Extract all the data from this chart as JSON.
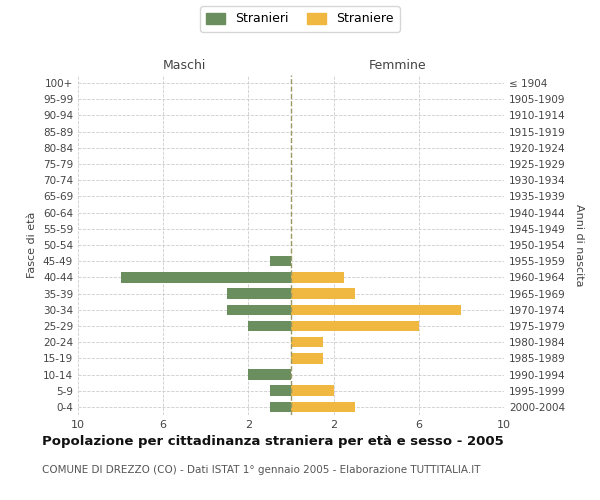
{
  "age_groups": [
    "100+",
    "95-99",
    "90-94",
    "85-89",
    "80-84",
    "75-79",
    "70-74",
    "65-69",
    "60-64",
    "55-59",
    "50-54",
    "45-49",
    "40-44",
    "35-39",
    "30-34",
    "25-29",
    "20-24",
    "15-19",
    "10-14",
    "5-9",
    "0-4"
  ],
  "birth_years": [
    "≤ 1904",
    "1905-1909",
    "1910-1914",
    "1915-1919",
    "1920-1924",
    "1925-1929",
    "1930-1934",
    "1935-1939",
    "1940-1944",
    "1945-1949",
    "1950-1954",
    "1955-1959",
    "1960-1964",
    "1965-1969",
    "1970-1974",
    "1975-1979",
    "1980-1984",
    "1985-1989",
    "1990-1994",
    "1995-1999",
    "2000-2004"
  ],
  "maschi": [
    0,
    0,
    0,
    0,
    0,
    0,
    0,
    0,
    0,
    0,
    0,
    1,
    8,
    3,
    3,
    2,
    0,
    0,
    2,
    1,
    1
  ],
  "femmine": [
    0,
    0,
    0,
    0,
    0,
    0,
    0,
    0,
    0,
    0,
    0,
    0,
    2.5,
    3,
    8,
    6,
    1.5,
    1.5,
    0,
    2,
    3
  ],
  "male_color": "#6b8e5e",
  "female_color": "#f0b840",
  "background_color": "#ffffff",
  "grid_color": "#cccccc",
  "center_line_color": "#999966",
  "title": "Popolazione per cittadinanza straniera per età e sesso - 2005",
  "subtitle": "COMUNE DI DREZZO (CO) - Dati ISTAT 1° gennaio 2005 - Elaborazione TUTTITALIA.IT",
  "xlabel_left": "Maschi",
  "xlabel_right": "Femmine",
  "ylabel_left": "Fasce di età",
  "ylabel_right": "Anni di nascita",
  "legend_stranieri": "Stranieri",
  "legend_straniere": "Straniere",
  "xlim": 10,
  "tick_positions": [
    -10,
    -6,
    -2,
    2,
    6,
    10
  ],
  "tick_labels": [
    "10",
    "6",
    "2",
    "2",
    "6",
    "10"
  ]
}
